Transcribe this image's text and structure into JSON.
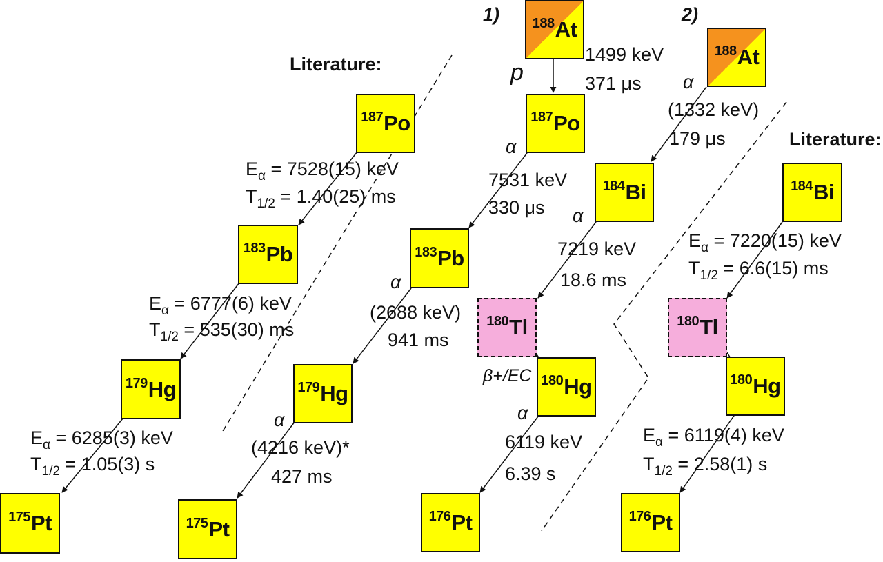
{
  "nuclides": {
    "lit_po187": {
      "mass": "187",
      "el": "Po"
    },
    "lit_pb183": {
      "mass": "183",
      "el": "Pb"
    },
    "lit_hg179": {
      "mass": "179",
      "el": "Hg"
    },
    "lit_pt175": {
      "mass": "175",
      "el": "Pt"
    },
    "c1_at188": {
      "mass": "188",
      "el": "At"
    },
    "c1_po187": {
      "mass": "187",
      "el": "Po"
    },
    "c1_pb183": {
      "mass": "183",
      "el": "Pb"
    },
    "c1_hg179": {
      "mass": "179",
      "el": "Hg"
    },
    "c1_pt175": {
      "mass": "175",
      "el": "Pt"
    },
    "c2_at188": {
      "mass": "188",
      "el": "At"
    },
    "c2_bi184": {
      "mass": "184",
      "el": "Bi"
    },
    "c2_tl180": {
      "mass": "180",
      "el": "Tl"
    },
    "c2_hg180": {
      "mass": "180",
      "el": "Hg"
    },
    "c2_pt176": {
      "mass": "176",
      "el": "Pt"
    },
    "lit2_bi184": {
      "mass": "184",
      "el": "Bi"
    },
    "lit2_tl180": {
      "mass": "180",
      "el": "Tl"
    },
    "lit2_hg180": {
      "mass": "180",
      "el": "Hg"
    },
    "lit2_pt176": {
      "mass": "176",
      "el": "Pt"
    }
  },
  "headings": {
    "literature_left": "Literature:",
    "literature_right": "Literature:",
    "case1": "1)",
    "case2": "2)"
  },
  "labels": {
    "lit_po": {
      "e": "E",
      "e_sub": "α",
      "e_val": " = 7528(15) keV",
      "t": "T",
      "t_sub": "1/2",
      "t_val": " = 1.40(25) ms"
    },
    "lit_pb": {
      "e": "E",
      "e_sub": "α",
      "e_val": " = 6777(6) keV",
      "t": "T",
      "t_sub": "1/2",
      "t_val": " = 535(30) ms"
    },
    "lit_hg": {
      "e": "E",
      "e_sub": "α",
      "e_val": " = 6285(3) keV",
      "t": "T",
      "t_sub": "1/2",
      "t_val": " = 1.05(3) s"
    },
    "c1_at": {
      "mode": "p",
      "energy": "1499 keV",
      "halflife": "371 μs"
    },
    "c1_po": {
      "mode": "α",
      "energy": "7531 keV",
      "halflife": "330 μs"
    },
    "c1_pb": {
      "mode": "α",
      "energy": "(2688 keV)",
      "halflife": "941 ms"
    },
    "c1_hg": {
      "mode": "α",
      "energy": "(4216 keV)*",
      "halflife": "427 ms"
    },
    "c2_at": {
      "mode": "α",
      "energy": "(1332 keV)",
      "halflife": "179 μs"
    },
    "c2_bi": {
      "mode": "α",
      "energy": "7219 keV",
      "halflife": "18.6 ms"
    },
    "c2_tl": {
      "mode": "β+/EC"
    },
    "c2_hg": {
      "mode": "α",
      "energy": "6119 keV",
      "halflife": "6.39 s"
    },
    "lit2_bi": {
      "e": "E",
      "e_sub": "α",
      "e_val": " = 7220(15) keV",
      "t": "T",
      "t_sub": "1/2",
      "t_val": " = 6.6(15) ms"
    },
    "lit2_hg": {
      "e": "E",
      "e_sub": "α",
      "e_val": " = 6119(4) keV",
      "t": "T",
      "t_sub": "1/2",
      "t_val": " = 2.58(1) s"
    }
  },
  "colors": {
    "nuclide_fill": "#ffff00",
    "astatine_split": "#f5921e",
    "thallium_fill": "#f6aedc"
  }
}
